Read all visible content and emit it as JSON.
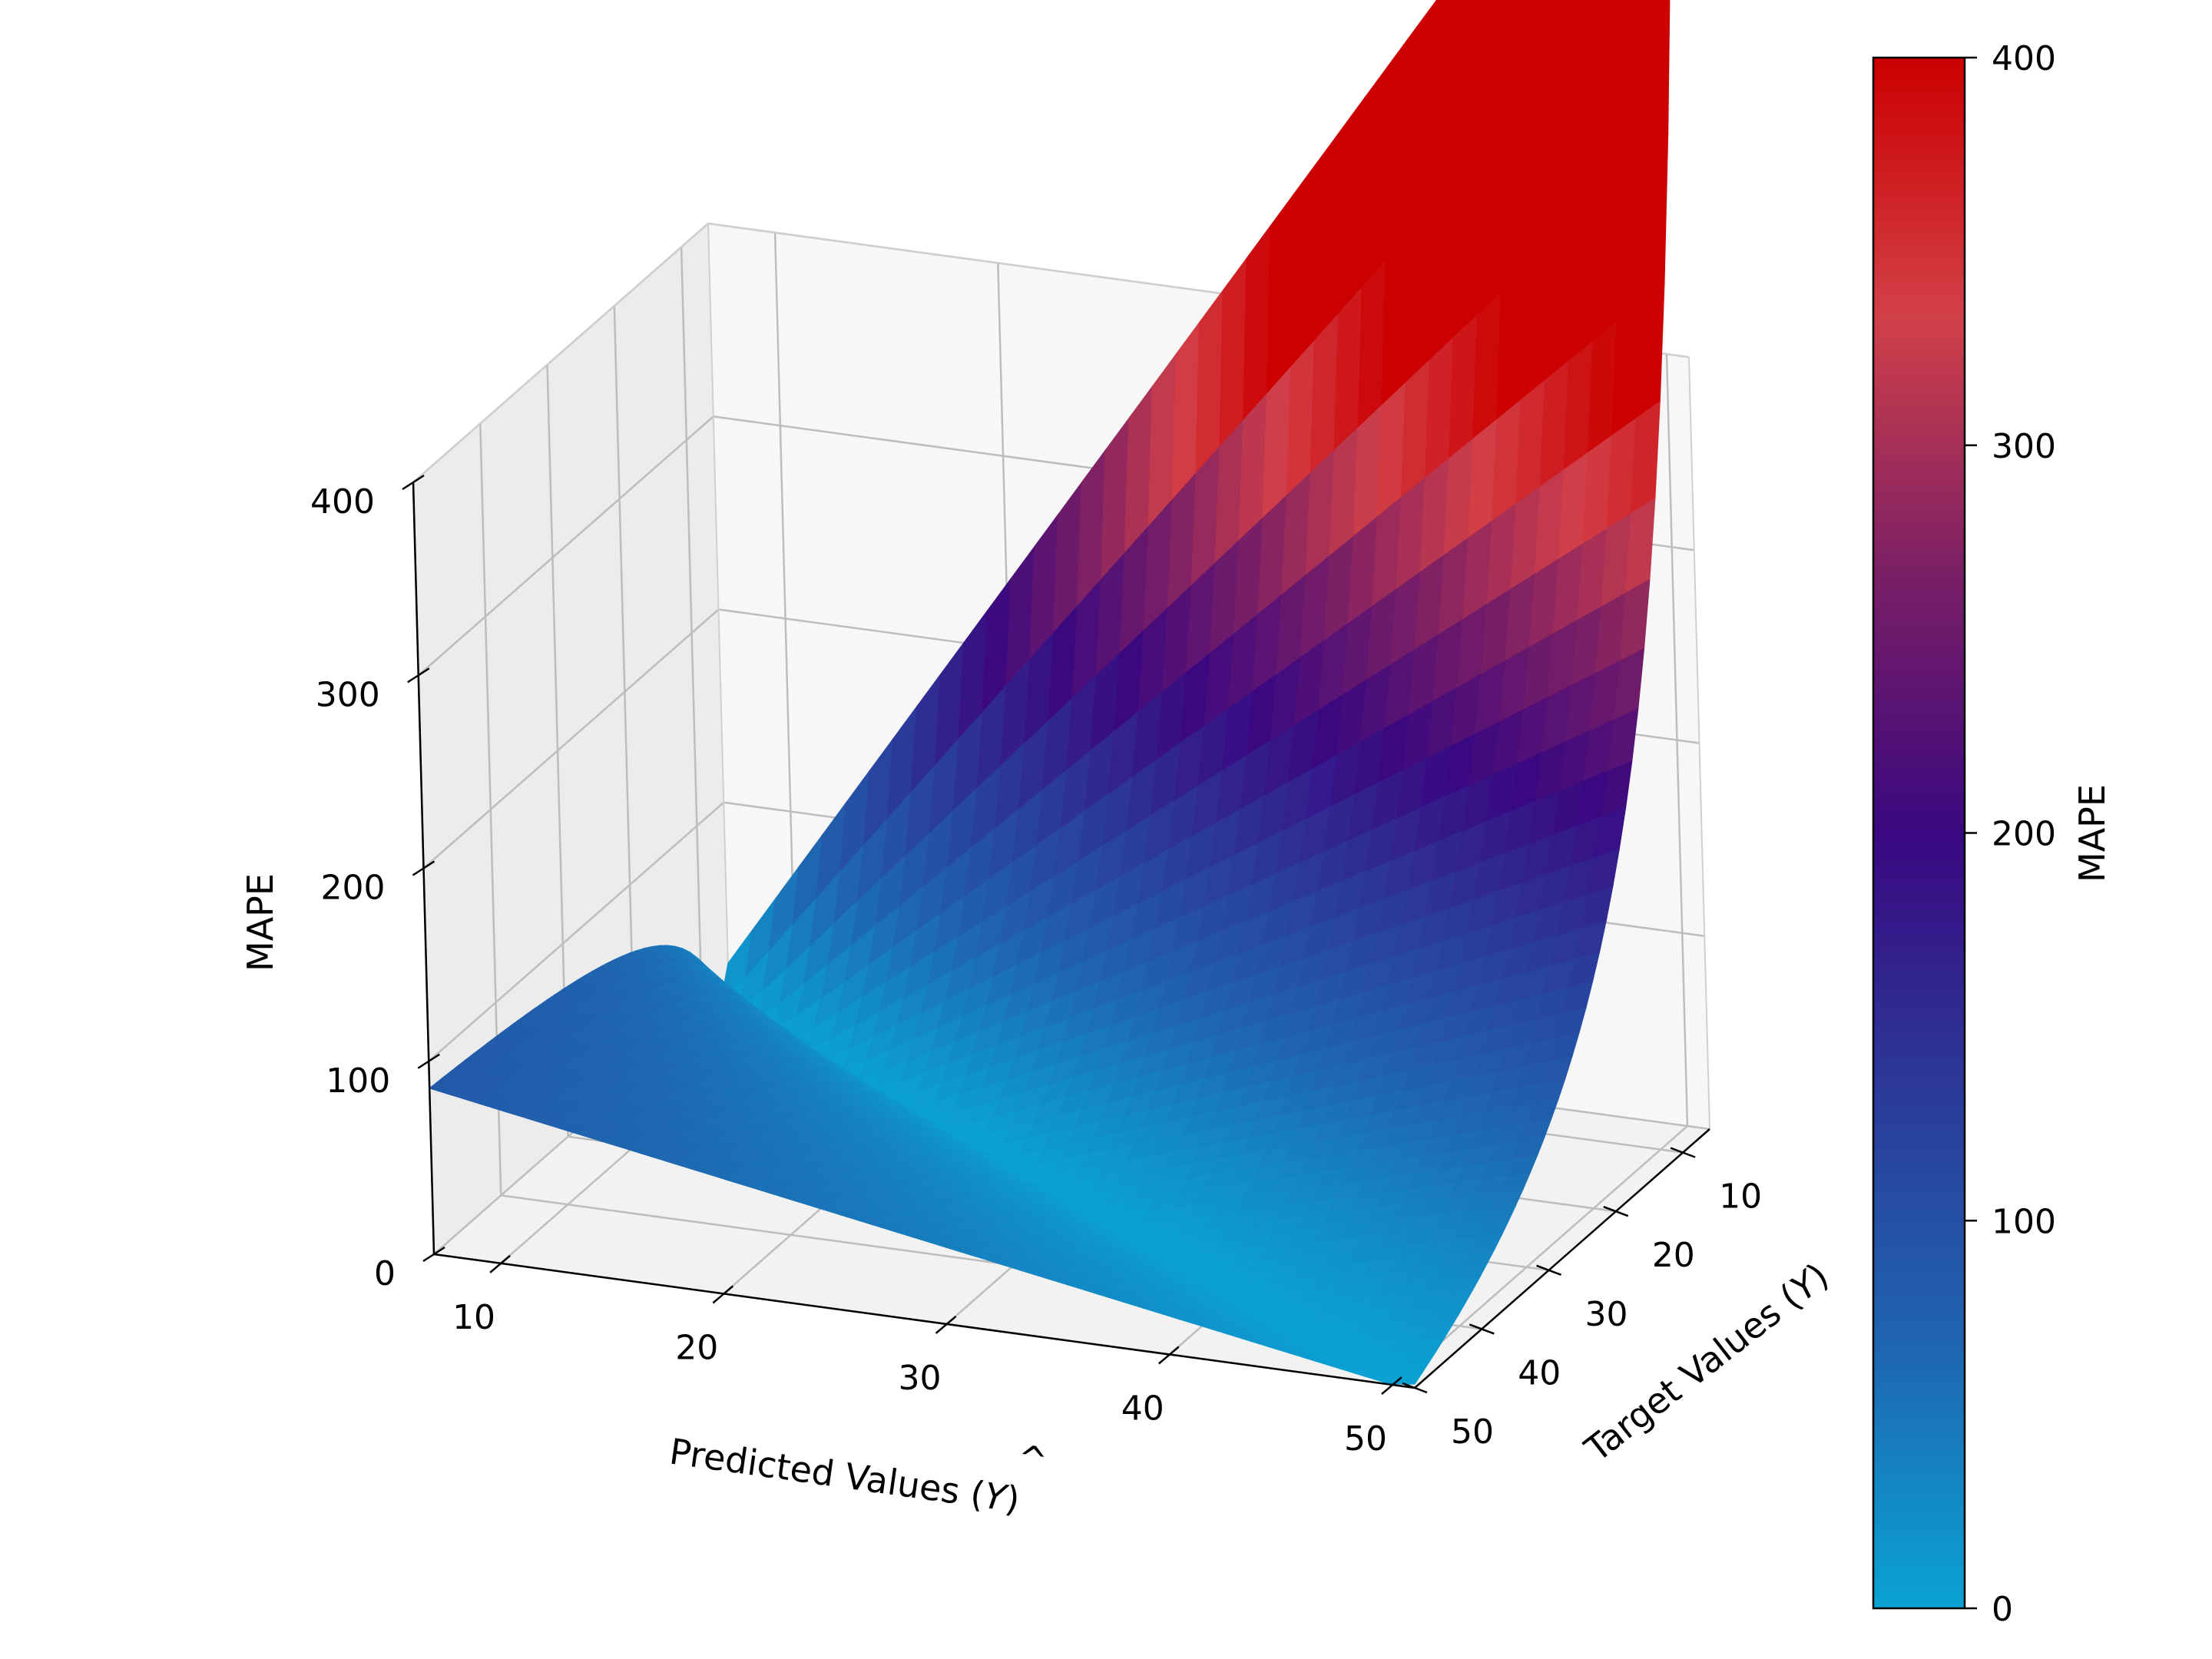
{
  "chart_data": {
    "type": "surface3d",
    "title": "",
    "x_axis": {
      "label": "Predicted Values (",
      "label_symbol": "Y",
      "label_hat": "^",
      "label_tail": ")",
      "ticks": [
        "10",
        "20",
        "30",
        "40",
        "50"
      ],
      "range": [
        7,
        51
      ]
    },
    "y_axis": {
      "label": "Target Values (",
      "label_symbol": "Y",
      "label_tail": ")",
      "ticks": [
        "10",
        "20",
        "30",
        "40",
        "50"
      ],
      "range": [
        6,
        50
      ]
    },
    "z_axis": {
      "label": "MAPE",
      "ticks": [
        "0",
        "100",
        "200",
        "300",
        "400"
      ],
      "range": [
        0,
        400
      ]
    },
    "surface": {
      "formula": "100 * |predicted - target| / target",
      "x_values": [
        7,
        51
      ],
      "y_values": [
        6,
        50
      ]
    },
    "colorbar": {
      "label": "MAPE",
      "ticks": [
        "0",
        "100",
        "200",
        "300",
        "400"
      ],
      "range": [
        0,
        400
      ],
      "colors": [
        "#0aa3d4",
        "#1f66b0",
        "#2b3a9a",
        "#3a0880",
        "#7a1f66",
        "#d24048",
        "#cc0000"
      ]
    },
    "grid": true,
    "pane_color": "#f2f2f2",
    "grid_color": "#bdbdbd"
  }
}
